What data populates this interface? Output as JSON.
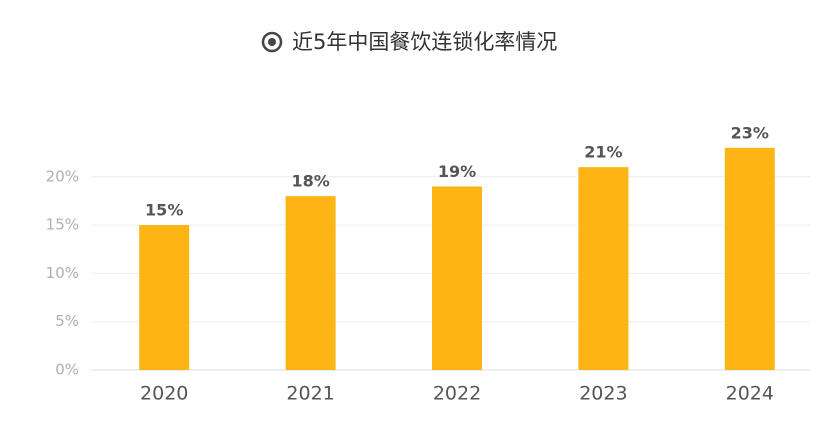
{
  "chart_data": {
    "type": "bar",
    "title": "近5年中国餐饮连锁化率情况",
    "categories": [
      "2020",
      "2021",
      "2022",
      "2023",
      "2024"
    ],
    "values": [
      15,
      18,
      19,
      21,
      23
    ],
    "value_labels": [
      "15%",
      "18%",
      "19%",
      "21%",
      "23%"
    ],
    "color": "#fdb515",
    "ylim": [
      0,
      25
    ],
    "yticks": [
      {
        "value": 0,
        "label": "0%"
      },
      {
        "value": 5,
        "label": "5%"
      },
      {
        "value": 10,
        "label": "10%"
      },
      {
        "value": 15,
        "label": "15%"
      },
      {
        "value": 20,
        "label": "20%"
      }
    ],
    "grid": true
  }
}
